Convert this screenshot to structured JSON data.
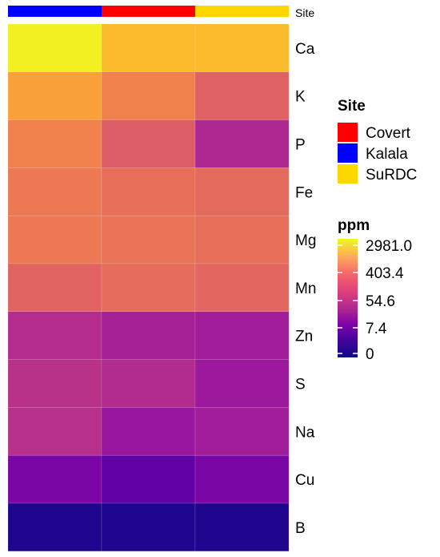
{
  "chart_data": {
    "type": "heatmap",
    "annotation_label": "Site",
    "columns": [
      {
        "site": "Kalala"
      },
      {
        "site": "Covert"
      },
      {
        "site": "SuRDC"
      }
    ],
    "rows": [
      "Ca",
      "K",
      "P",
      "Fe",
      "Mg",
      "Mn",
      "Zn",
      "S",
      "Na",
      "Cu",
      "B"
    ],
    "values": [
      [
        2500,
        900,
        900
      ],
      [
        520,
        250,
        110
      ],
      [
        250,
        100,
        22
      ],
      [
        200,
        160,
        140
      ],
      [
        200,
        180,
        160
      ],
      [
        120,
        150,
        130
      ],
      [
        25,
        18,
        16
      ],
      [
        30,
        24,
        14
      ],
      [
        28,
        13,
        16
      ],
      [
        6,
        3,
        6
      ],
      [
        0.3,
        0.3,
        0.3
      ]
    ],
    "site_legend": {
      "title": "Site",
      "entries": [
        {
          "name": "Covert",
          "color": "#FF0000"
        },
        {
          "name": "Kalala",
          "color": "#0000FF"
        },
        {
          "name": "SuRDC",
          "color": "#FFD700"
        }
      ]
    },
    "color_legend": {
      "title": "ppm",
      "ticks": [
        "2981.0",
        "403.4",
        "54.6",
        "7.4",
        "0"
      ],
      "palette": "plasma",
      "scale": "log"
    }
  }
}
